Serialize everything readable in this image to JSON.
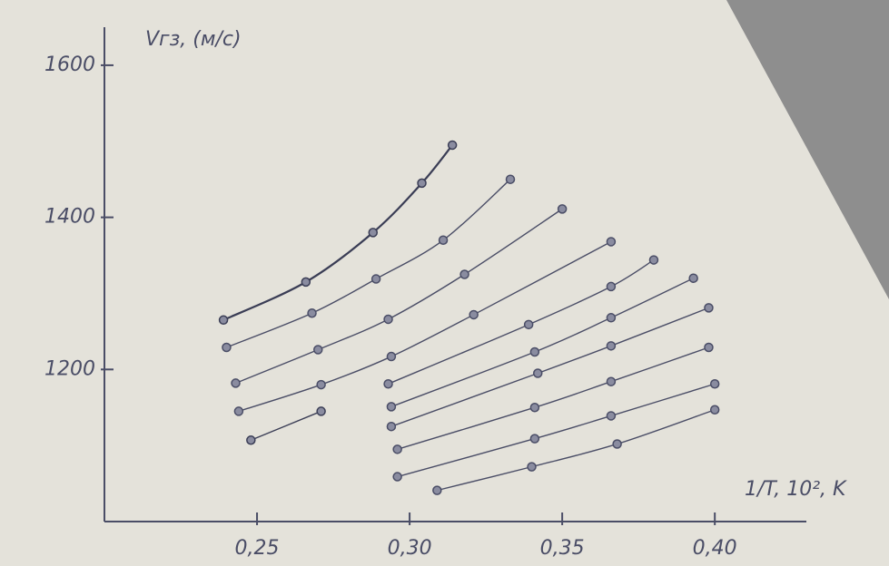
{
  "chart_data": {
    "type": "line",
    "y_label": "Vгз, (м/с)",
    "x_label": "1/T, 10², K",
    "xlim": [
      0.2,
      0.43
    ],
    "ylim": [
      1000,
      1650
    ],
    "xticks": [
      {
        "value": 0.25,
        "label": "0,25"
      },
      {
        "value": 0.3,
        "label": "0,30"
      },
      {
        "value": 0.35,
        "label": "0,35"
      },
      {
        "value": 0.4,
        "label": "0,40"
      }
    ],
    "yticks": [
      1200,
      1400,
      1600
    ],
    "grid": false,
    "series": [
      {
        "color": "#3a3d55",
        "x": [
          0.239,
          0.266,
          0.288,
          0.304,
          0.314
        ],
        "values": [
          1265,
          1315,
          1380,
          1445,
          1495
        ]
      },
      {
        "color": "#4a4d66",
        "x": [
          0.24,
          0.268,
          0.289,
          0.311,
          0.333
        ],
        "values": [
          1229,
          1274,
          1319,
          1370,
          1450
        ]
      },
      {
        "color": "#4a4d66",
        "x": [
          0.243,
          0.27,
          0.293,
          0.318,
          0.35
        ],
        "values": [
          1182,
          1226,
          1266,
          1325,
          1411
        ]
      },
      {
        "color": "#4a4d66",
        "x": [
          0.244,
          0.271,
          0.294,
          0.321,
          0.366
        ],
        "values": [
          1145,
          1180,
          1217,
          1272,
          1368
        ]
      },
      {
        "color": "#3a3d55",
        "x": [
          0.248,
          0.271
        ],
        "values": [
          1107,
          1145
        ]
      },
      {
        "color": "#4a4d66",
        "x": [
          0.293,
          0.339,
          0.366,
          0.38
        ],
        "values": [
          1181,
          1259,
          1309,
          1344
        ]
      },
      {
        "color": "#4a4d66",
        "x": [
          0.294,
          0.341,
          0.366,
          0.393
        ],
        "values": [
          1151,
          1223,
          1268,
          1320
        ]
      },
      {
        "color": "#4a4d66",
        "x": [
          0.294,
          0.342,
          0.366,
          0.398
        ],
        "values": [
          1125,
          1195,
          1231,
          1281
        ]
      },
      {
        "color": "#4a4d66",
        "x": [
          0.296,
          0.341,
          0.366,
          0.398
        ],
        "values": [
          1095,
          1150,
          1184,
          1229
        ]
      },
      {
        "color": "#4a4d66",
        "x": [
          0.296,
          0.341,
          0.366,
          0.4
        ],
        "values": [
          1059,
          1109,
          1139,
          1181
        ]
      },
      {
        "color": "#4a4d66",
        "x": [
          0.309,
          0.34,
          0.368,
          0.4
        ],
        "values": [
          1041,
          1072,
          1102,
          1147
        ]
      }
    ]
  }
}
